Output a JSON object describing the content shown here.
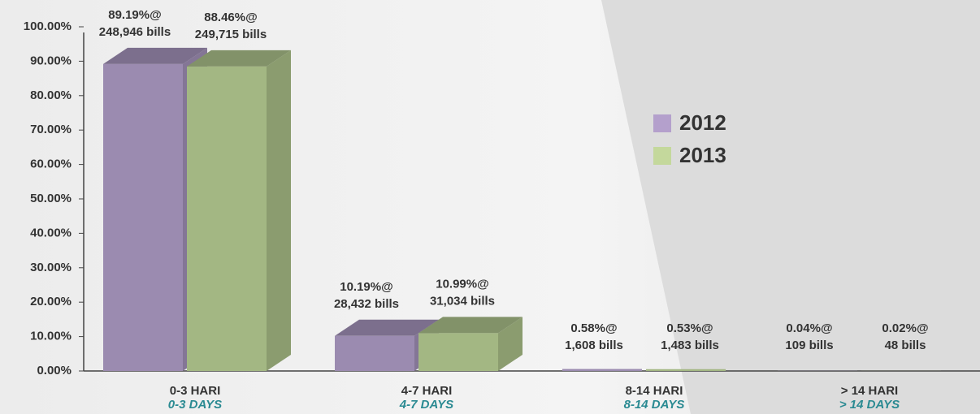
{
  "chart_data": {
    "type": "bar3d",
    "categories": [
      "0-3 HARI",
      "4-7 HARI",
      "8-14 HARI",
      "> 14 HARI"
    ],
    "category_translations": [
      "0-3 DAYS",
      "4-7 DAYS",
      "8-14 DAYS",
      "> 14 DAYS"
    ],
    "series": [
      {
        "name": "2012",
        "color": "#9b8bb0",
        "legend_color": "#b4a0cc",
        "values": [
          89.19,
          10.19,
          0.58,
          0.04
        ],
        "value_labels": [
          "89.19%@",
          "10.19%@",
          "0.58%@",
          "0.04%@"
        ],
        "count_labels": [
          "248,946 bills",
          "28,432 bills",
          "1,608 bills",
          "109 bills"
        ]
      },
      {
        "name": "2013",
        "color": "#a3b783",
        "legend_color": "#c4d89c",
        "values": [
          88.46,
          10.99,
          0.53,
          0.02
        ],
        "value_labels": [
          "88.46%@",
          "10.99%@",
          "0.53%@",
          "0.02%@"
        ],
        "count_labels": [
          "249,715 bills",
          "31,034 bills",
          "1,483 bills",
          "48 bills"
        ]
      }
    ],
    "ylim": [
      0,
      100
    ],
    "yticks": [
      {
        "value": 0,
        "label": "0.00%"
      },
      {
        "value": 10,
        "label": "10.00%"
      },
      {
        "value": 20,
        "label": "20.00%"
      },
      {
        "value": 30,
        "label": "30.00%"
      },
      {
        "value": 40,
        "label": "40.00%"
      },
      {
        "value": 50,
        "label": "50.00%"
      },
      {
        "value": 60,
        "label": "60.00%"
      },
      {
        "value": 70,
        "label": "70.00%"
      },
      {
        "value": 80,
        "label": "80.00%"
      },
      {
        "value": 90,
        "label": "90.00%"
      },
      {
        "value": 100,
        "label": "100.00%"
      }
    ],
    "legend": "right",
    "grid": false
  }
}
